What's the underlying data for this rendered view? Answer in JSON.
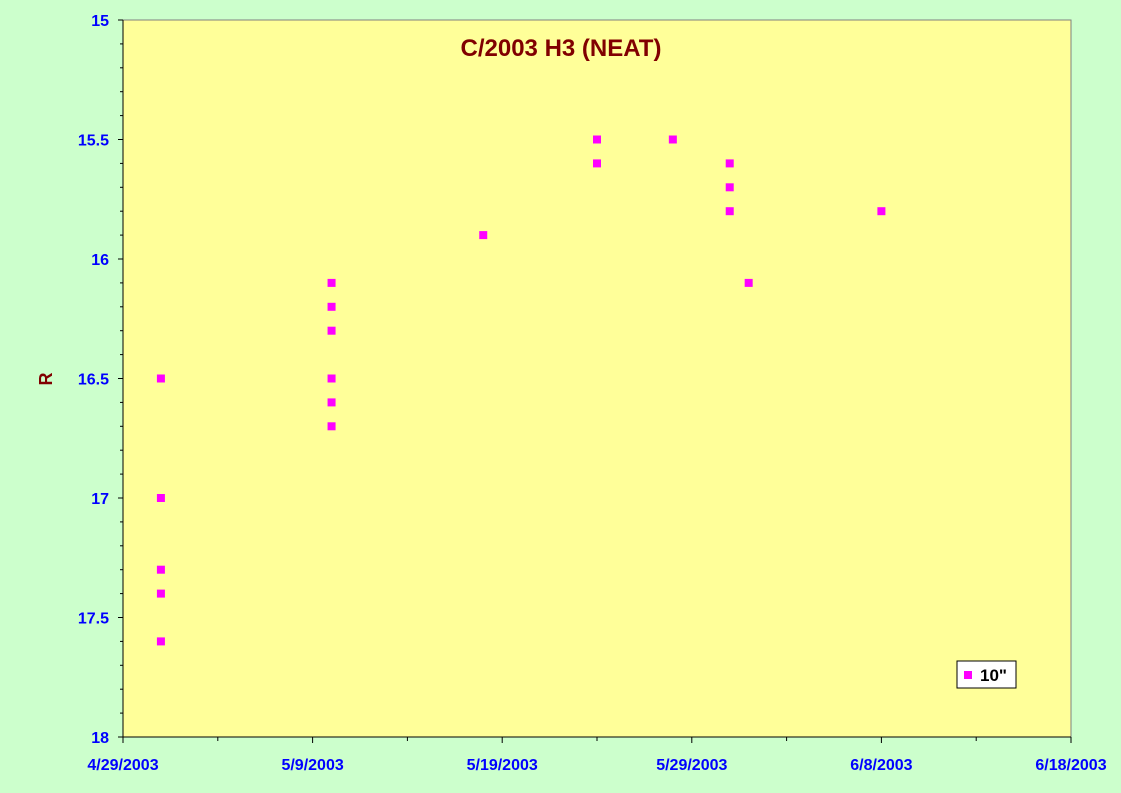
{
  "chart_data": {
    "type": "scatter",
    "title": "C/2003 H3 (NEAT)",
    "xlabel": "",
    "ylabel": "R",
    "x_axis": {
      "type": "date",
      "min": "2003-04-29",
      "max": "2003-06-18",
      "tick_labels": [
        "4/29/2003",
        "5/9/2003",
        "5/19/2003",
        "5/29/2003",
        "6/8/2003",
        "6/18/2003"
      ]
    },
    "y_axis": {
      "reversed": true,
      "min": 15,
      "max": 18,
      "tick_labels": [
        "15",
        "15.5",
        "16",
        "16.5",
        "17",
        "17.5",
        "18"
      ]
    },
    "grid": false,
    "legend_position": "bottom-right",
    "series": [
      {
        "name": "10\"",
        "color": "#ff00ff",
        "marker": "square",
        "points": [
          {
            "x": "2003-05-01",
            "y": 16.5
          },
          {
            "x": "2003-05-01",
            "y": 17.0
          },
          {
            "x": "2003-05-01",
            "y": 17.3
          },
          {
            "x": "2003-05-01",
            "y": 17.4
          },
          {
            "x": "2003-05-01",
            "y": 17.6
          },
          {
            "x": "2003-05-10",
            "y": 16.1
          },
          {
            "x": "2003-05-10",
            "y": 16.2
          },
          {
            "x": "2003-05-10",
            "y": 16.3
          },
          {
            "x": "2003-05-10",
            "y": 16.5
          },
          {
            "x": "2003-05-10",
            "y": 16.6
          },
          {
            "x": "2003-05-10",
            "y": 16.7
          },
          {
            "x": "2003-05-18",
            "y": 15.9
          },
          {
            "x": "2003-05-24",
            "y": 15.5
          },
          {
            "x": "2003-05-24",
            "y": 15.6
          },
          {
            "x": "2003-05-28",
            "y": 15.5
          },
          {
            "x": "2003-05-31",
            "y": 15.6
          },
          {
            "x": "2003-05-31",
            "y": 15.7
          },
          {
            "x": "2003-05-31",
            "y": 15.8
          },
          {
            "x": "2003-06-01",
            "y": 16.1
          },
          {
            "x": "2003-06-08",
            "y": 15.8
          }
        ]
      }
    ]
  },
  "colors": {
    "page_background": "#ccffcc",
    "plot_background": "#ffff99",
    "axis_text": "#0000ff",
    "title_text": "#800000",
    "marker": "#ff00ff"
  }
}
